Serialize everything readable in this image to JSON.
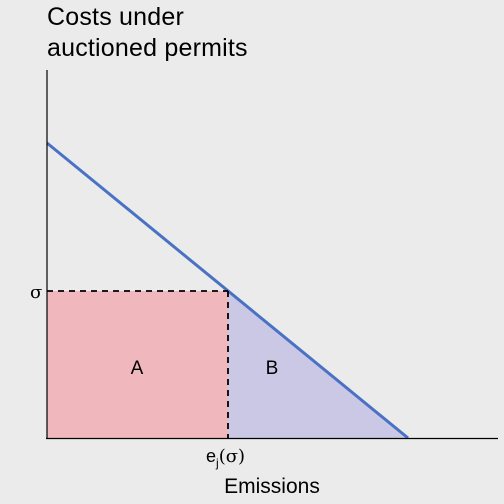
{
  "title": {
    "line1": "Costs under",
    "line2": "auctioned permits"
  },
  "axes": {
    "x_label": "Emissions",
    "y_tick_label": "σ",
    "x_tick_label_base": "e",
    "x_tick_label_subscript": "j",
    "x_tick_label_arg": "(σ)"
  },
  "regions": {
    "a_label": "A",
    "b_label": "B"
  },
  "colors": {
    "background": "#ebebeb",
    "axis": "#000000",
    "curve": "#4a72c4",
    "region_a": "#f0b8bc",
    "region_b": "#cbc8e6",
    "dashed": "#000000"
  }
}
